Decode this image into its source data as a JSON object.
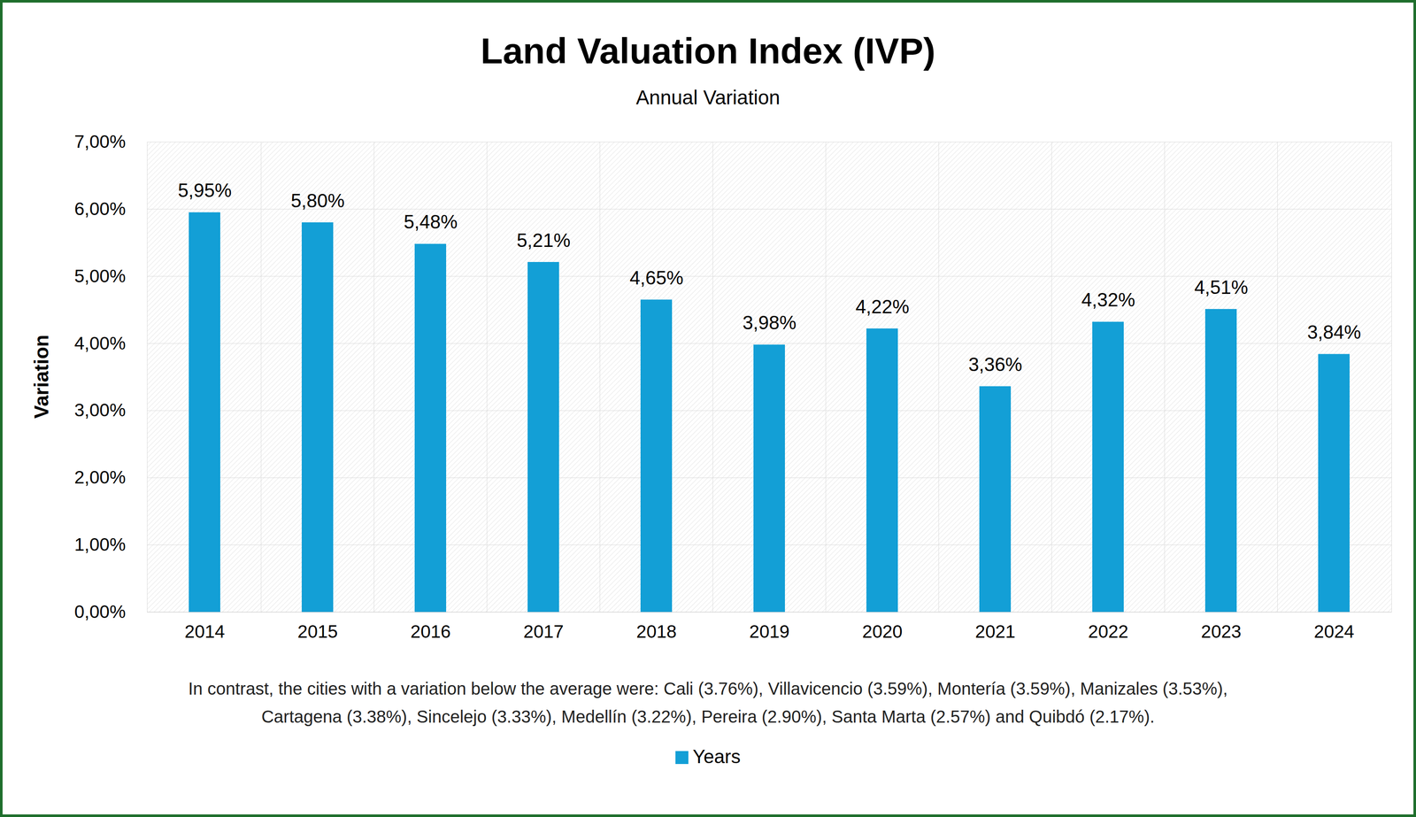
{
  "chart_data": {
    "type": "bar",
    "title": "Land Valuation Index (IVP)",
    "subtitle": "Annual Variation",
    "y_label": "Variation",
    "caption": "In contrast, the cities with a variation below the average were: Cali (3.76%), Villavicencio (3.59%), Montería (3.59%), Manizales (3.53%), Cartagena (3.38%), Sincelejo (3.33%), Medellín (3.22%), Pereira (2.90%), Santa Marta (2.57%) and Quibdó (2.17%).",
    "categories": [
      "2014",
      "2015",
      "2016",
      "2017",
      "2018",
      "2019",
      "2020",
      "2021",
      "2022",
      "2023",
      "2024"
    ],
    "series": [
      {
        "name": "Years",
        "color": "#139fd6",
        "values": [
          5.95,
          5.8,
          5.48,
          5.21,
          4.65,
          3.98,
          4.22,
          3.36,
          4.32,
          4.51,
          3.84
        ],
        "value_labels": [
          "5,95%",
          "5,80%",
          "5,48%",
          "5,21%",
          "4,65%",
          "3,98%",
          "4,22%",
          "3,36%",
          "4,32%",
          "4,51%",
          "3,84%"
        ]
      }
    ],
    "ylim": [
      0,
      7
    ],
    "yticks": [
      {
        "value": 0,
        "label": "0,00%"
      },
      {
        "value": 1,
        "label": "1,00%"
      },
      {
        "value": 2,
        "label": "2,00%"
      },
      {
        "value": 3,
        "label": "3,00%"
      },
      {
        "value": 4,
        "label": "4,00%"
      },
      {
        "value": 5,
        "label": "5,00%"
      },
      {
        "value": 6,
        "label": "6,00%"
      },
      {
        "value": 7,
        "label": "7,00%"
      }
    ],
    "grid": true,
    "data_labels": true,
    "legend": "bottom"
  }
}
